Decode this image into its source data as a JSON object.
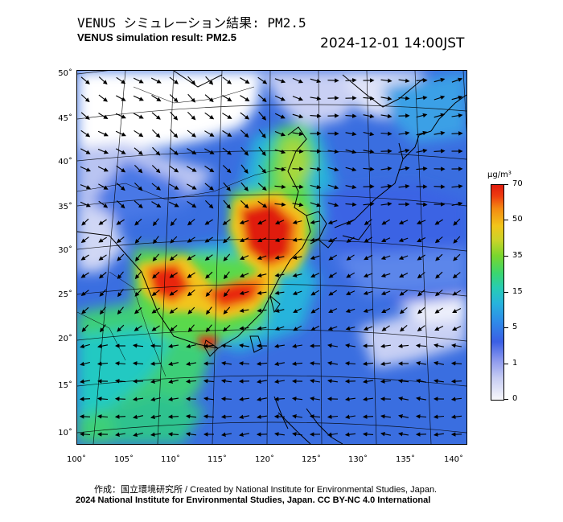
{
  "header": {
    "title_jp": "VENUS シミュレーション結果: PM2.5",
    "title_en": "VENUS simulation result: PM2.5",
    "datetime": "2024-12-01 14:00JST"
  },
  "map": {
    "lat_labels": [
      "50˚",
      "45˚",
      "40˚",
      "35˚",
      "30˚",
      "25˚",
      "20˚",
      "15˚",
      "10˚"
    ],
    "lon_labels": [
      "100˚",
      "105˚",
      "110˚",
      "115˚",
      "120˚",
      "125˚",
      "130˚",
      "135˚",
      "140˚"
    ],
    "region": "East Asia",
    "lat_range": [
      9,
      51
    ],
    "lon_range": [
      100,
      142
    ]
  },
  "colorbar": {
    "unit": "µg/m³",
    "labels": [
      "70",
      "50",
      "35",
      "15",
      "5",
      "1",
      "0"
    ],
    "colors": [
      "#f7f7fb",
      "#8f9bee",
      "#3b5fe5",
      "#27b4dc",
      "#3bd66e",
      "#c8d42a",
      "#f48a12",
      "#e01d0e"
    ]
  },
  "footer": {
    "credit_line1": "作成：国立環境研究所 / Created by National Institute for Environmental Studies, Japan.",
    "credit_line2": "2024 National Institute for Environmental Studies, Japan. CC BY-NC 4.0 International"
  }
}
